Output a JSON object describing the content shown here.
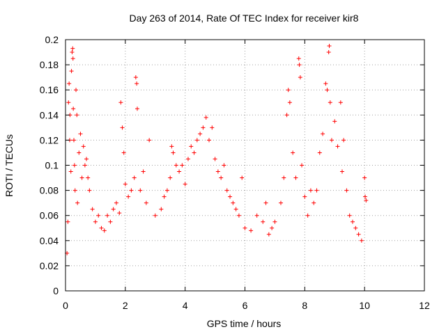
{
  "chart_data": {
    "type": "scatter",
    "title": "Day 263 of 2014, Rate Of TEC Index for receiver kir8",
    "xlabel": "GPS time / hours",
    "ylabel": "ROTI / TECUs",
    "xlim": [
      0,
      12
    ],
    "ylim": [
      0,
      0.2
    ],
    "x_ticks": [
      0,
      2,
      4,
      6,
      8,
      10,
      12
    ],
    "x_tick_labels": [
      "0",
      "2",
      "4",
      "6",
      "8",
      "10",
      "12"
    ],
    "y_ticks": [
      0,
      0.02,
      0.04,
      0.06,
      0.08,
      0.1,
      0.12,
      0.14,
      0.16,
      0.18,
      0.2
    ],
    "y_tick_labels": [
      "0",
      "0.02",
      "0.04",
      "0.06",
      "0.08",
      "0.1",
      "0.12",
      "0.14",
      "0.16",
      "0.18",
      "0.2"
    ],
    "grid": true,
    "marker": "plus",
    "color": "#ff0000",
    "series": [
      {
        "name": "ROTI",
        "points": [
          [
            0.05,
            0.03
          ],
          [
            0.08,
            0.055
          ],
          [
            0.1,
            0.15
          ],
          [
            0.12,
            0.165
          ],
          [
            0.14,
            0.12
          ],
          [
            0.15,
            0.14
          ],
          [
            0.18,
            0.095
          ],
          [
            0.2,
            0.175
          ],
          [
            0.22,
            0.19
          ],
          [
            0.24,
            0.193
          ],
          [
            0.25,
            0.185
          ],
          [
            0.26,
            0.145
          ],
          [
            0.28,
            0.12
          ],
          [
            0.3,
            0.1
          ],
          [
            0.32,
            0.08
          ],
          [
            0.35,
            0.16
          ],
          [
            0.38,
            0.14
          ],
          [
            0.4,
            0.07
          ],
          [
            0.45,
            0.11
          ],
          [
            0.5,
            0.125
          ],
          [
            0.55,
            0.09
          ],
          [
            0.6,
            0.115
          ],
          [
            0.65,
            0.1
          ],
          [
            0.7,
            0.105
          ],
          [
            0.75,
            0.09
          ],
          [
            0.8,
            0.08
          ],
          [
            0.9,
            0.065
          ],
          [
            1.0,
            0.055
          ],
          [
            1.1,
            0.06
          ],
          [
            1.2,
            0.05
          ],
          [
            1.3,
            0.048
          ],
          [
            1.4,
            0.06
          ],
          [
            1.5,
            0.055
          ],
          [
            1.6,
            0.065
          ],
          [
            1.7,
            0.07
          ],
          [
            1.8,
            0.062
          ],
          [
            1.85,
            0.15
          ],
          [
            1.9,
            0.13
          ],
          [
            1.95,
            0.11
          ],
          [
            2.0,
            0.085
          ],
          [
            2.1,
            0.075
          ],
          [
            2.2,
            0.08
          ],
          [
            2.3,
            0.09
          ],
          [
            2.35,
            0.17
          ],
          [
            2.38,
            0.165
          ],
          [
            2.4,
            0.145
          ],
          [
            2.5,
            0.08
          ],
          [
            2.6,
            0.095
          ],
          [
            2.7,
            0.07
          ],
          [
            2.8,
            0.12
          ],
          [
            3.0,
            0.06
          ],
          [
            3.2,
            0.065
          ],
          [
            3.3,
            0.075
          ],
          [
            3.4,
            0.08
          ],
          [
            3.5,
            0.09
          ],
          [
            3.55,
            0.115
          ],
          [
            3.6,
            0.11
          ],
          [
            3.7,
            0.1
          ],
          [
            3.8,
            0.095
          ],
          [
            3.9,
            0.1
          ],
          [
            4.0,
            0.085
          ],
          [
            4.1,
            0.105
          ],
          [
            4.2,
            0.115
          ],
          [
            4.3,
            0.11
          ],
          [
            4.4,
            0.12
          ],
          [
            4.5,
            0.125
          ],
          [
            4.6,
            0.13
          ],
          [
            4.7,
            0.138
          ],
          [
            4.8,
            0.12
          ],
          [
            4.9,
            0.13
          ],
          [
            5.0,
            0.105
          ],
          [
            5.1,
            0.095
          ],
          [
            5.2,
            0.09
          ],
          [
            5.3,
            0.1
          ],
          [
            5.4,
            0.08
          ],
          [
            5.5,
            0.075
          ],
          [
            5.6,
            0.07
          ],
          [
            5.7,
            0.065
          ],
          [
            5.8,
            0.06
          ],
          [
            5.9,
            0.09
          ],
          [
            6.0,
            0.05
          ],
          [
            6.2,
            0.048
          ],
          [
            6.4,
            0.06
          ],
          [
            6.6,
            0.055
          ],
          [
            6.7,
            0.07
          ],
          [
            6.8,
            0.045
          ],
          [
            6.9,
            0.05
          ],
          [
            7.0,
            0.055
          ],
          [
            7.2,
            0.07
          ],
          [
            7.3,
            0.09
          ],
          [
            7.4,
            0.14
          ],
          [
            7.45,
            0.16
          ],
          [
            7.5,
            0.15
          ],
          [
            7.6,
            0.11
          ],
          [
            7.7,
            0.09
          ],
          [
            7.8,
            0.185
          ],
          [
            7.82,
            0.18
          ],
          [
            7.85,
            0.17
          ],
          [
            7.9,
            0.1
          ],
          [
            8.0,
            0.075
          ],
          [
            8.1,
            0.06
          ],
          [
            8.2,
            0.08
          ],
          [
            8.3,
            0.07
          ],
          [
            8.4,
            0.08
          ],
          [
            8.5,
            0.11
          ],
          [
            8.6,
            0.125
          ],
          [
            8.7,
            0.165
          ],
          [
            8.75,
            0.16
          ],
          [
            8.8,
            0.19
          ],
          [
            8.82,
            0.195
          ],
          [
            8.85,
            0.15
          ],
          [
            8.9,
            0.12
          ],
          [
            9.0,
            0.135
          ],
          [
            9.1,
            0.115
          ],
          [
            9.2,
            0.15
          ],
          [
            9.25,
            0.095
          ],
          [
            9.3,
            0.12
          ],
          [
            9.4,
            0.08
          ],
          [
            9.5,
            0.06
          ],
          [
            9.6,
            0.055
          ],
          [
            9.7,
            0.05
          ],
          [
            9.8,
            0.045
          ],
          [
            9.9,
            0.04
          ],
          [
            10.0,
            0.09
          ],
          [
            10.02,
            0.075
          ],
          [
            10.05,
            0.072
          ]
        ]
      }
    ]
  }
}
